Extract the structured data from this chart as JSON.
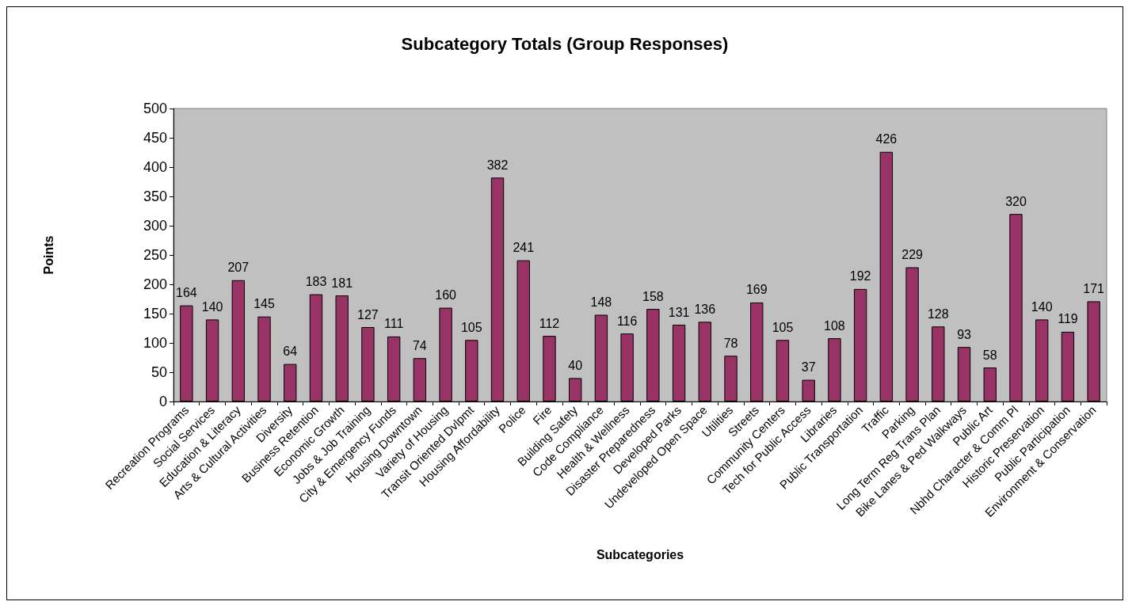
{
  "chart_data": {
    "type": "bar",
    "title": "Subcategory Totals (Group Responses)",
    "xlabel": "Subcategories",
    "ylabel": "Points",
    "categories": [
      "Recreation Programs",
      "Social Services",
      "Education & Literacy",
      "Arts & Cultural Activities",
      "Diversity",
      "Business Retention",
      "Economic Growth",
      "Jobs & Job Training",
      "City & Emergency Funds",
      "Housing Downtown",
      "Variety of Housing",
      "Transit Oriented Dvlpmt",
      "Housing Affordability",
      "Police",
      "Fire",
      "Building Safety",
      "Code Compliance",
      "Health & Wellness",
      "Disaster Preparedness",
      "Developed Parks",
      "Undeveloped Open Space",
      "Utilities",
      "Streets",
      "Community Centers",
      "Tech for Public Access",
      "Libraries",
      "Public Transportation",
      "Traffic",
      "Parking",
      "Long Term Reg Trans Plan",
      "Bike Lanes & Ped Walkways",
      "Public Art",
      "Nbhd Character & Comm Pl",
      "Historic Preservation",
      "Public Participation",
      "Environment & Conservation"
    ],
    "values": [
      164,
      140,
      207,
      145,
      64,
      183,
      181,
      127,
      111,
      74,
      160,
      105,
      382,
      241,
      112,
      40,
      148,
      116,
      158,
      131,
      136,
      78,
      169,
      105,
      37,
      108,
      192,
      426,
      229,
      128,
      93,
      58,
      320,
      140,
      119,
      171
    ],
    "color": "#993366",
    "ylim": [
      0,
      500
    ],
    "yticks": [
      0,
      50,
      100,
      150,
      200,
      250,
      300,
      350,
      400,
      450,
      500
    ],
    "grid": false,
    "data_labels": true
  }
}
